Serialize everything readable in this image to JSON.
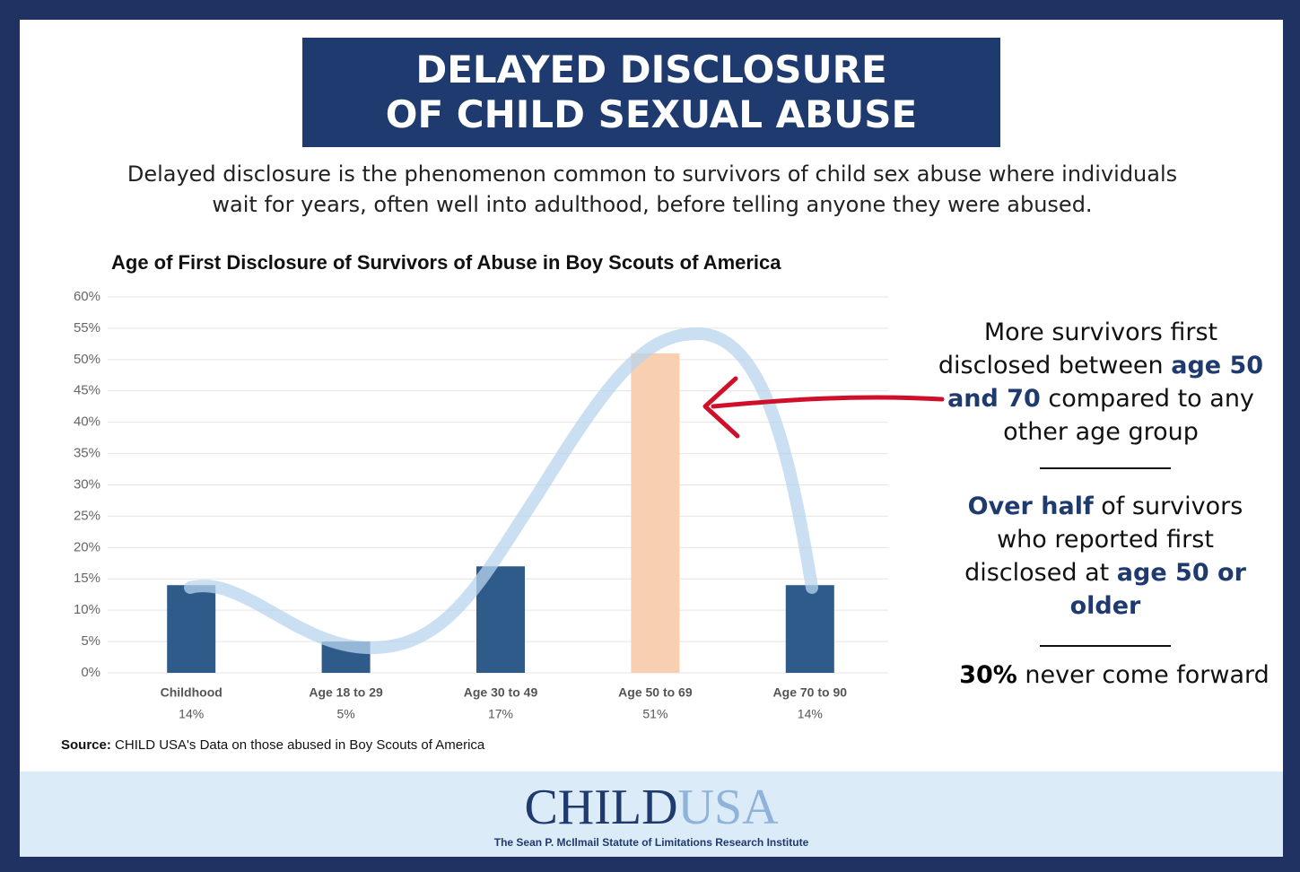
{
  "header": {
    "title_lines": [
      "DELAYED DISCLOSURE",
      "OF CHILD SEXUAL ABUSE"
    ],
    "description": "Delayed disclosure is the phenomenon common to survivors of child sex abuse where individuals wait for years, often well into adulthood, before telling anyone they were abused."
  },
  "chart_data": {
    "type": "bar",
    "title": "Age of First Disclosure of Survivors of Abuse in Boy Scouts of America",
    "categories": [
      "Childhood",
      "Age 18 to 29",
      "Age 30 to 49",
      "Age 50 to 69",
      "Age 70 to 90"
    ],
    "values": [
      14,
      5,
      17,
      51,
      14
    ],
    "value_labels": [
      "14%",
      "5%",
      "17%",
      "51%",
      "14%"
    ],
    "colors": [
      "#2f5b8b",
      "#2f5b8b",
      "#2f5b8b",
      "#f8cfb0",
      "#2f5b8b"
    ],
    "ylim": [
      0,
      60
    ],
    "yticks": [
      {
        "value": 0,
        "label": "0%"
      },
      {
        "value": 5,
        "label": "5%"
      },
      {
        "value": 10,
        "label": "10%"
      },
      {
        "value": 15,
        "label": "15%"
      },
      {
        "value": 20,
        "label": "20%"
      },
      {
        "value": 25,
        "label": "25%"
      },
      {
        "value": 30,
        "label": "30%"
      },
      {
        "value": 35,
        "label": "35%"
      },
      {
        "value": 40,
        "label": "40%"
      },
      {
        "value": 45,
        "label": "45%"
      },
      {
        "value": 50,
        "label": "50%"
      },
      {
        "value": 55,
        "label": "55%"
      },
      {
        "value": 60,
        "label": "60%"
      }
    ],
    "grid": true
  },
  "callouts": [
    {
      "parts": [
        {
          "text": "More survivors first disclosed between "
        },
        {
          "text": "age 50 and 70",
          "bold": true
        },
        {
          "text": " compared to any other age group"
        }
      ]
    },
    {
      "parts": [
        {
          "text": "Over half",
          "bold": true
        },
        {
          "text": " of survivors who reported first disclosed at "
        },
        {
          "text": "age 50 or older",
          "bold": true
        }
      ]
    },
    {
      "parts": [
        {
          "text": "30%",
          "bold": true,
          "dark": true
        },
        {
          "text": " never come forward"
        }
      ]
    }
  ],
  "source": {
    "label": "Source:",
    "text": "CHILD USA's Data on those abused in Boy Scouts of America"
  },
  "footer": {
    "logo_main": "CHILD",
    "logo_accent": "USA",
    "tagline": "The Sean P. McIlmail Statute of Limitations Research Institute"
  }
}
